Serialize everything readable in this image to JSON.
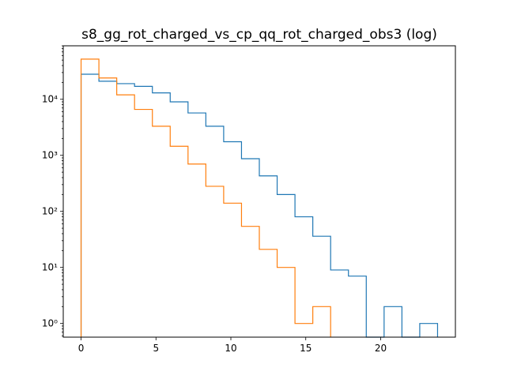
{
  "chart_data": {
    "type": "histogram-step",
    "title": "s8_gg_rot_charged_vs_cp_qq_rot_charged_obs3 (log)",
    "xlabel": "",
    "ylabel": "",
    "xlim": [
      -1.19,
      24.99
    ],
    "ylim": [
      0.57,
      90000
    ],
    "yscale": "log",
    "grid": false,
    "x_ticks": [
      0,
      5,
      10,
      15,
      20
    ],
    "x_tick_labels": [
      "0",
      "5",
      "10",
      "15",
      "20"
    ],
    "y_ticks": [
      1,
      10,
      100,
      1000,
      10000
    ],
    "y_tick_labels": [
      "10⁰",
      "10¹",
      "10²",
      "10³",
      "10⁴"
    ],
    "bin_edges": [
      0,
      1.19,
      2.38,
      3.57,
      4.76,
      5.95,
      7.14,
      8.33,
      9.52,
      10.71,
      11.9,
      13.09,
      14.28,
      15.47,
      16.66,
      17.85,
      19.04,
      20.23,
      21.42,
      22.61,
      23.8
    ],
    "series": [
      {
        "color": "#1f77b4",
        "counts": [
          28000,
          21000,
          19000,
          17000,
          13000,
          9000,
          5700,
          3300,
          1750,
          870,
          430,
          200,
          80,
          36,
          9,
          7,
          0,
          2,
          0,
          1
        ]
      },
      {
        "color": "#ff7f0e",
        "counts": [
          52000,
          24000,
          12000,
          6600,
          3300,
          1450,
          700,
          280,
          140,
          54,
          21,
          10,
          1,
          2,
          0,
          0,
          0,
          0,
          0,
          0
        ]
      }
    ]
  }
}
